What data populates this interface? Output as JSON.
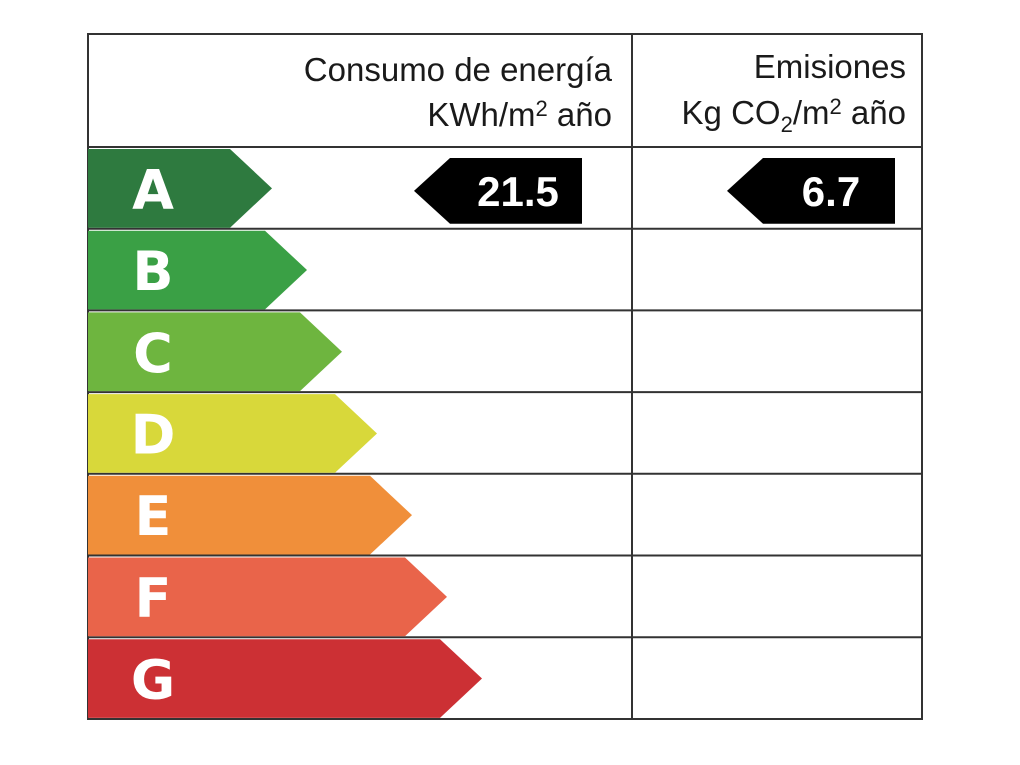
{
  "header": {
    "consumo_title": "Consumo de energía",
    "consumo_unit_main": "KWh/m",
    "consumo_unit_sup": "2",
    "consumo_unit_tail": " año",
    "emisiones_title": "Emisiones",
    "emisiones_unit_main": "Kg CO",
    "emisiones_unit_sub": "2",
    "emisiones_unit_mid": "/m",
    "emisiones_unit_sup": "2",
    "emisiones_unit_tail": " año"
  },
  "ratings": [
    {
      "letter": "A",
      "color": "#2e7a3f"
    },
    {
      "letter": "B",
      "color": "#3aa045"
    },
    {
      "letter": "C",
      "color": "#6eb53f"
    },
    {
      "letter": "D",
      "color": "#d8d83a"
    },
    {
      "letter": "E",
      "color": "#f08f3a"
    },
    {
      "letter": "F",
      "color": "#e9644a"
    },
    {
      "letter": "G",
      "color": "#cc3034"
    }
  ],
  "consumo": {
    "rating": "A",
    "value": "21.5"
  },
  "emisiones": {
    "rating": "A",
    "value": "6.7"
  }
}
